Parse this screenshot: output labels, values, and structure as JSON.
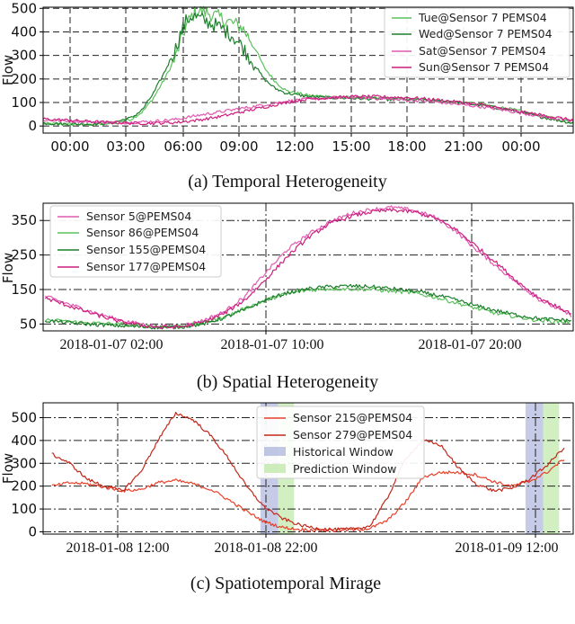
{
  "chart_data": [
    {
      "type": "line",
      "caption": "(a) Temporal Heterogeneity",
      "ylabel": "Flow",
      "xlabel": "",
      "x_ticks": [
        "00:00",
        "03:00",
        "06:00",
        "09:00",
        "12:00",
        "15:00",
        "18:00",
        "21:00",
        "00:00"
      ],
      "y_ticks": [
        "0",
        "100",
        "200",
        "300",
        "400",
        "500"
      ],
      "x_unit": "hour",
      "xlim": [
        0,
        24
      ],
      "ylim": [
        -30,
        505
      ],
      "grid": "dashed",
      "legend_position": "top-right",
      "colors": {
        "Tue": "#5cc15c",
        "Wed": "#1e7f2c",
        "Sat": "#e15ab0",
        "Sun": "#cc1f7e"
      },
      "series": [
        {
          "name": "Tue@Sensor 7 PEMS04",
          "color": "#5cc15c",
          "x": [
            0,
            1,
            2,
            3,
            4,
            4.5,
            5,
            5.5,
            6,
            6.25,
            6.5,
            6.75,
            7,
            7.5,
            8,
            8.5,
            9,
            9.5,
            10,
            10.5,
            11,
            12,
            13,
            14,
            15,
            16,
            17,
            18,
            19,
            20,
            21,
            22,
            23,
            24
          ],
          "y": [
            10,
            8,
            7,
            10,
            30,
            60,
            120,
            200,
            290,
            370,
            430,
            470,
            490,
            480,
            460,
            440,
            420,
            350,
            250,
            190,
            150,
            130,
            125,
            120,
            118,
            115,
            112,
            108,
            100,
            90,
            75,
            55,
            35,
            15
          ]
        },
        {
          "name": "Wed@Sensor 7 PEMS04",
          "color": "#1e7f2c",
          "x": [
            0,
            1,
            2,
            3,
            4,
            4.5,
            5,
            5.5,
            6,
            6.25,
            6.5,
            6.75,
            7,
            7.5,
            8,
            8.5,
            9,
            9.5,
            10,
            10.5,
            11,
            12,
            13,
            14,
            15,
            16,
            17,
            18,
            19,
            20,
            21,
            22,
            23,
            24
          ],
          "y": [
            12,
            9,
            8,
            12,
            35,
            70,
            140,
            230,
            330,
            400,
            450,
            470,
            460,
            440,
            420,
            390,
            340,
            270,
            200,
            160,
            140,
            125,
            120,
            118,
            115,
            112,
            110,
            105,
            98,
            85,
            70,
            50,
            30,
            12
          ]
        },
        {
          "name": "Sat@Sensor 7 PEMS04",
          "color": "#e15ab0",
          "x": [
            0,
            1,
            2,
            3,
            4,
            5,
            6,
            7,
            8,
            9,
            10,
            11,
            12,
            13,
            14,
            15,
            16,
            17,
            18,
            19,
            20,
            21,
            22,
            23,
            24
          ],
          "y": [
            25,
            22,
            18,
            15,
            15,
            20,
            28,
            45,
            60,
            75,
            90,
            105,
            115,
            120,
            122,
            118,
            112,
            108,
            100,
            90,
            80,
            65,
            50,
            35,
            20
          ]
        },
        {
          "name": "Sun@Sensor 7 PEMS04",
          "color": "#cc1f7e",
          "x": [
            0,
            1,
            2,
            3,
            4,
            5,
            6,
            7,
            8,
            9,
            10,
            11,
            12,
            13,
            14,
            15,
            16,
            17,
            18,
            19,
            20,
            21,
            22,
            23,
            24
          ],
          "y": [
            30,
            25,
            20,
            15,
            12,
            12,
            15,
            25,
            40,
            60,
            80,
            100,
            115,
            120,
            125,
            125,
            122,
            118,
            110,
            100,
            88,
            70,
            55,
            40,
            25
          ]
        }
      ]
    },
    {
      "type": "line",
      "caption": "(b) Spatial Heterogeneity",
      "ylabel": "Flow",
      "xlabel": "",
      "x_ticks": [
        "2018-01-07 02:00",
        "2018-01-07 10:00",
        "2018-01-07 20:00"
      ],
      "y_ticks": [
        "50",
        "150",
        "250",
        "350"
      ],
      "x_unit": "hour of 2018-01-07",
      "xlim": [
        -1.6,
        23.6
      ],
      "ylim": [
        30,
        400
      ],
      "grid": "dash-dot",
      "legend_position": "top-left",
      "series": [
        {
          "name": "Sensor 5@PEMS04",
          "color": "#e15ab0",
          "x": [
            -1.5,
            0,
            1,
            2,
            3,
            4,
            5,
            6,
            7,
            8,
            9,
            10,
            11,
            12,
            13,
            14,
            15,
            16,
            17,
            18,
            19,
            20,
            21,
            22,
            23.5
          ],
          "y": [
            130,
            100,
            80,
            62,
            50,
            42,
            45,
            60,
            85,
            130,
            200,
            265,
            310,
            345,
            370,
            382,
            388,
            380,
            360,
            320,
            265,
            215,
            165,
            120,
            75
          ]
        },
        {
          "name": "Sensor 86@PEMS04",
          "color": "#5cc15c",
          "x": [
            -1.5,
            0,
            1,
            2,
            3,
            4,
            5,
            6,
            7,
            8,
            9,
            10,
            11,
            12,
            13,
            14,
            15,
            16,
            17,
            18,
            19,
            20,
            21,
            22,
            23.5
          ],
          "y": [
            62,
            55,
            52,
            50,
            45,
            42,
            44,
            52,
            70,
            95,
            120,
            138,
            148,
            152,
            152,
            150,
            145,
            140,
            128,
            112,
            95,
            80,
            70,
            60,
            55
          ]
        },
        {
          "name": "Sensor 155@PEMS04",
          "color": "#1e7f2c",
          "x": [
            -1.5,
            0,
            1,
            2,
            3,
            4,
            5,
            6,
            7,
            8,
            9,
            10,
            11,
            12,
            13,
            14,
            15,
            16,
            17,
            18,
            19,
            20,
            21,
            22,
            23.5
          ],
          "y": [
            60,
            52,
            48,
            45,
            42,
            40,
            42,
            50,
            68,
            92,
            120,
            140,
            152,
            158,
            160,
            158,
            152,
            145,
            135,
            120,
            102,
            88,
            75,
            65,
            60
          ]
        },
        {
          "name": "Sensor 177@PEMS04",
          "color": "#cc1f7e",
          "x": [
            -1.5,
            0,
            1,
            2,
            3,
            4,
            5,
            6,
            7,
            8,
            9,
            10,
            11,
            12,
            13,
            14,
            15,
            16,
            17,
            18,
            19,
            20,
            21,
            22,
            23.5
          ],
          "y": [
            125,
            95,
            75,
            58,
            47,
            40,
            42,
            55,
            80,
            120,
            180,
            245,
            300,
            340,
            362,
            375,
            380,
            375,
            358,
            325,
            275,
            225,
            170,
            125,
            80
          ]
        }
      ]
    },
    {
      "type": "line",
      "caption": "(c) Spatiotemporal Mirage",
      "ylabel": "Flow",
      "xlabel": "",
      "x_ticks": [
        "2018-01-08 12:00",
        "2018-01-08 22:00",
        "2018-01-09 12:00"
      ],
      "y_ticks": [
        "0",
        "100",
        "200",
        "300",
        "400",
        "500"
      ],
      "x_unit": "hours since 2018-01-08 00:00",
      "xlim": [
        8.5,
        38.5
      ],
      "ylim": [
        -10,
        565
      ],
      "grid": "dash-dot",
      "legend_position": "top-center",
      "series": [
        {
          "name": "Sensor 215@PEMS04",
          "color": "#e8402a",
          "x": [
            9,
            10,
            11,
            12,
            13,
            14,
            15,
            16,
            17,
            18,
            19,
            20,
            21,
            22,
            23,
            24,
            25,
            26,
            27,
            28,
            29,
            30,
            31,
            32,
            33,
            34,
            35,
            36,
            37,
            38
          ],
          "y": [
            200,
            215,
            210,
            195,
            180,
            185,
            215,
            225,
            210,
            185,
            140,
            90,
            45,
            20,
            10,
            8,
            6,
            8,
            15,
            50,
            130,
            240,
            260,
            260,
            250,
            220,
            200,
            220,
            260,
            320
          ]
        },
        {
          "name": "Sensor 279@PEMS04",
          "color": "#c2281a",
          "x": [
            9,
            10,
            11,
            12,
            13,
            14,
            15,
            16,
            17,
            18,
            19,
            20,
            21,
            22,
            23,
            24,
            25,
            26,
            27,
            28,
            29,
            30,
            31,
            32,
            33,
            34,
            35,
            36,
            37,
            38
          ],
          "y": [
            340,
            300,
            230,
            200,
            180,
            260,
            400,
            520,
            490,
            420,
            320,
            200,
            110,
            60,
            30,
            15,
            10,
            12,
            25,
            150,
            320,
            400,
            380,
            280,
            210,
            180,
            190,
            230,
            290,
            370
          ]
        }
      ],
      "shaded": [
        {
          "label": "Historical Window",
          "color": "#97a3d4",
          "x_from": 20.8,
          "x_to": 21.8
        },
        {
          "label": "Prediction Window",
          "color": "#b9e6a0",
          "x_from": 21.8,
          "x_to": 22.7
        },
        {
          "label": "Historical Window",
          "color": "#97a3d4",
          "x_from": 35.8,
          "x_to": 36.8
        },
        {
          "label": "Prediction Window",
          "color": "#b9e6a0",
          "x_from": 36.8,
          "x_to": 37.7
        }
      ],
      "legend_entries": [
        "Sensor 215@PEMS04",
        "Sensor 279@PEMS04",
        "Historical Window",
        "Prediction Window"
      ]
    }
  ]
}
